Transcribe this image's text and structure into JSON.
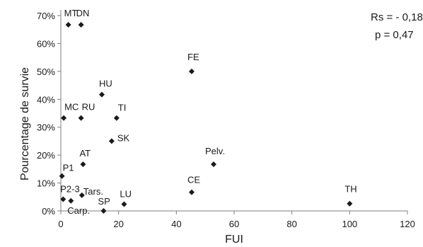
{
  "chart_data": {
    "type": "scatter",
    "xlabel": "FUI",
    "ylabel": "Pourcentage de survie",
    "xlim": [
      0,
      120
    ],
    "ylim": [
      0,
      70
    ],
    "x_ticks": [
      "0",
      "20",
      "40",
      "60",
      "80",
      "100",
      "120"
    ],
    "y_ticks": [
      "0%",
      "10%",
      "20%",
      "30%",
      "40%",
      "50%",
      "60%",
      "70%"
    ],
    "grid": false,
    "marker": "diamond",
    "marker_color": "#1a1a1a",
    "annotations": [
      "Rs = - 0,18",
      "p = 0,47"
    ],
    "points": [
      {
        "label": "MT",
        "x": 2.6,
        "y": 66.7
      },
      {
        "label": "DN",
        "x": 7.0,
        "y": 66.7
      },
      {
        "label": "FE",
        "x": 45.3,
        "y": 50.0
      },
      {
        "label": "HU",
        "x": 14.2,
        "y": 41.7
      },
      {
        "label": "MC",
        "x": 1.0,
        "y": 33.3
      },
      {
        "label": "RU",
        "x": 7.0,
        "y": 33.3
      },
      {
        "label": "TI",
        "x": 19.3,
        "y": 33.3
      },
      {
        "label": "SK",
        "x": 17.6,
        "y": 25.0
      },
      {
        "label": "Pelv.",
        "x": 52.9,
        "y": 16.7
      },
      {
        "label": "AT",
        "x": 7.7,
        "y": 16.7
      },
      {
        "label": "P1",
        "x": 0.4,
        "y": 12.5
      },
      {
        "label": "CE",
        "x": 45.3,
        "y": 6.7
      },
      {
        "label": "Tars.",
        "x": 7.3,
        "y": 5.6
      },
      {
        "label": "P2-3",
        "x": 0.8,
        "y": 4.2
      },
      {
        "label": "Carp.",
        "x": 3.5,
        "y": 3.6
      },
      {
        "label": "LU",
        "x": 21.9,
        "y": 2.4
      },
      {
        "label": "TH",
        "x": 100.0,
        "y": 2.6
      },
      {
        "label": "SP",
        "x": 14.8,
        "y": 0.0
      }
    ]
  }
}
